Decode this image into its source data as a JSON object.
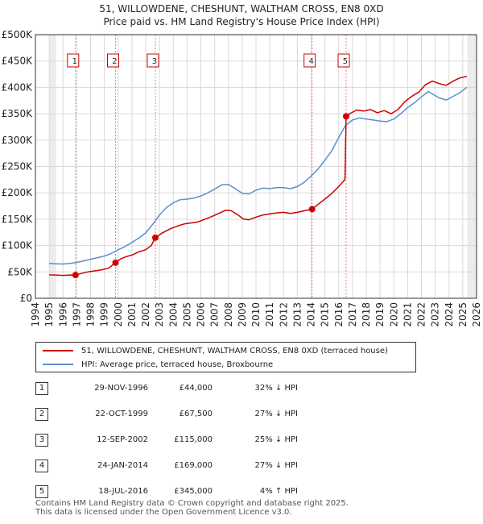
{
  "header": {
    "title": "51, WILLOWDENE, CHESHUNT, WALTHAM CROSS, EN8 0XD",
    "subtitle": "Price paid vs. HM Land Registry's House Price Index (HPI)"
  },
  "chart_data": {
    "type": "line",
    "title": "51, WILLOWDENE, CHESHUNT, WALTHAM CROSS, EN8 0XD",
    "subtitle": "Price paid vs. HM Land Registry's House Price Index (HPI)",
    "xlabel": "",
    "ylabel": "",
    "xlim": [
      1994,
      2026
    ],
    "ylim": [
      0,
      500000
    ],
    "x_ticks": [
      1994,
      1995,
      1996,
      1997,
      1998,
      1999,
      2000,
      2001,
      2002,
      2003,
      2004,
      2005,
      2006,
      2007,
      2008,
      2009,
      2010,
      2011,
      2012,
      2013,
      2014,
      2015,
      2016,
      2017,
      2018,
      2019,
      2020,
      2021,
      2022,
      2023,
      2024,
      2025,
      2026
    ],
    "y_ticks": [
      {
        "value": 0,
        "label": "£0"
      },
      {
        "value": 50000,
        "label": "£50K"
      },
      {
        "value": 100000,
        "label": "£100K"
      },
      {
        "value": 150000,
        "label": "£150K"
      },
      {
        "value": 200000,
        "label": "£200K"
      },
      {
        "value": 250000,
        "label": "£250K"
      },
      {
        "value": 300000,
        "label": "£300K"
      },
      {
        "value": 350000,
        "label": "£350K"
      },
      {
        "value": 400000,
        "label": "£400K"
      },
      {
        "value": 450000,
        "label": "£450K"
      },
      {
        "value": 500000,
        "label": "£500K"
      }
    ],
    "grid": true,
    "shaded_periods": [
      [
        1995.0,
        1995.5
      ],
      [
        2025.33,
        2026.0
      ]
    ],
    "series": [
      {
        "name": "51, WILLOWDENE, CHESHUNT, WALTHAM CROSS, EN8 0XD (terraced house)",
        "color": "#cc0000",
        "points": [
          [
            1995.0,
            44500
          ],
          [
            1995.5,
            44000
          ],
          [
            1996.0,
            43500
          ],
          [
            1996.5,
            44200
          ],
          [
            1996.91,
            44000
          ],
          [
            1997.3,
            47000
          ],
          [
            1997.8,
            50000
          ],
          [
            1998.3,
            52000
          ],
          [
            1998.8,
            54000
          ],
          [
            1999.3,
            57000
          ],
          [
            1999.81,
            67500
          ],
          [
            2000.2,
            75000
          ],
          [
            2000.6,
            79000
          ],
          [
            2001.0,
            82000
          ],
          [
            2001.5,
            88000
          ],
          [
            2002.0,
            92000
          ],
          [
            2002.4,
            100000
          ],
          [
            2002.7,
            115000
          ],
          [
            2003.2,
            124000
          ],
          [
            2003.8,
            132000
          ],
          [
            2004.3,
            137000
          ],
          [
            2004.8,
            141000
          ],
          [
            2005.3,
            143000
          ],
          [
            2005.8,
            145000
          ],
          [
            2006.3,
            150000
          ],
          [
            2006.8,
            155000
          ],
          [
            2007.3,
            161000
          ],
          [
            2007.8,
            167000
          ],
          [
            2008.2,
            166000
          ],
          [
            2008.7,
            158000
          ],
          [
            2009.1,
            150000
          ],
          [
            2009.5,
            149000
          ],
          [
            2010.0,
            154000
          ],
          [
            2010.5,
            158000
          ],
          [
            2011.0,
            160000
          ],
          [
            2011.5,
            162000
          ],
          [
            2012.0,
            163000
          ],
          [
            2012.5,
            161000
          ],
          [
            2013.0,
            163000
          ],
          [
            2013.5,
            166000
          ],
          [
            2014.07,
            169000
          ],
          [
            2014.5,
            178000
          ],
          [
            2015.0,
            188000
          ],
          [
            2015.5,
            199000
          ],
          [
            2016.0,
            212000
          ],
          [
            2016.45,
            225000
          ],
          [
            2016.54,
            345000
          ],
          [
            2016.8,
            350000
          ],
          [
            2017.3,
            357000
          ],
          [
            2017.8,
            355000
          ],
          [
            2018.3,
            358000
          ],
          [
            2018.8,
            352000
          ],
          [
            2019.3,
            356000
          ],
          [
            2019.8,
            350000
          ],
          [
            2020.3,
            358000
          ],
          [
            2020.8,
            373000
          ],
          [
            2021.3,
            383000
          ],
          [
            2021.8,
            391000
          ],
          [
            2022.3,
            405000
          ],
          [
            2022.8,
            412000
          ],
          [
            2023.3,
            407000
          ],
          [
            2023.8,
            404000
          ],
          [
            2024.3,
            412000
          ],
          [
            2024.8,
            418000
          ],
          [
            2025.3,
            421000
          ]
        ]
      },
      {
        "name": "HPI: Average price, terraced house, Broxbourne",
        "color": "#5b8fd0",
        "points": [
          [
            1995.0,
            66000
          ],
          [
            1995.5,
            65500
          ],
          [
            1996.0,
            65000
          ],
          [
            1996.5,
            66000
          ],
          [
            1997.0,
            68000
          ],
          [
            1997.5,
            71000
          ],
          [
            1998.0,
            74000
          ],
          [
            1998.5,
            77000
          ],
          [
            1999.0,
            80000
          ],
          [
            1999.5,
            85000
          ],
          [
            2000.0,
            92000
          ],
          [
            2000.5,
            98000
          ],
          [
            2001.0,
            106000
          ],
          [
            2001.5,
            114000
          ],
          [
            2002.0,
            124000
          ],
          [
            2002.5,
            140000
          ],
          [
            2003.0,
            158000
          ],
          [
            2003.5,
            172000
          ],
          [
            2004.0,
            181000
          ],
          [
            2004.5,
            187000
          ],
          [
            2005.0,
            188000
          ],
          [
            2005.5,
            190000
          ],
          [
            2006.0,
            194000
          ],
          [
            2006.5,
            200000
          ],
          [
            2007.0,
            207000
          ],
          [
            2007.5,
            215000
          ],
          [
            2008.0,
            216000
          ],
          [
            2008.5,
            208000
          ],
          [
            2009.0,
            199000
          ],
          [
            2009.5,
            198000
          ],
          [
            2010.0,
            205000
          ],
          [
            2010.5,
            209000
          ],
          [
            2011.0,
            208000
          ],
          [
            2011.5,
            210000
          ],
          [
            2012.0,
            210000
          ],
          [
            2012.5,
            208000
          ],
          [
            2013.0,
            212000
          ],
          [
            2013.5,
            220000
          ],
          [
            2014.0,
            232000
          ],
          [
            2014.5,
            245000
          ],
          [
            2015.0,
            262000
          ],
          [
            2015.5,
            280000
          ],
          [
            2016.0,
            305000
          ],
          [
            2016.5,
            328000
          ],
          [
            2017.0,
            338000
          ],
          [
            2017.5,
            342000
          ],
          [
            2018.0,
            340000
          ],
          [
            2018.5,
            338000
          ],
          [
            2019.0,
            336000
          ],
          [
            2019.5,
            335000
          ],
          [
            2020.0,
            340000
          ],
          [
            2020.5,
            350000
          ],
          [
            2021.0,
            362000
          ],
          [
            2021.5,
            371000
          ],
          [
            2022.0,
            382000
          ],
          [
            2022.5,
            392000
          ],
          [
            2022.9,
            386000
          ],
          [
            2023.3,
            380000
          ],
          [
            2023.8,
            376000
          ],
          [
            2024.3,
            383000
          ],
          [
            2024.8,
            390000
          ],
          [
            2025.3,
            400000
          ]
        ]
      }
    ],
    "sales": [
      {
        "id": "1",
        "year": 1996.91,
        "price": 44000
      },
      {
        "id": "2",
        "year": 1999.81,
        "price": 67500
      },
      {
        "id": "3",
        "year": 2002.7,
        "price": 115000
      },
      {
        "id": "4",
        "year": 2014.07,
        "price": 169000
      },
      {
        "id": "5",
        "year": 2016.54,
        "price": 345000
      }
    ]
  },
  "legend": {
    "property": "51, WILLOWDENE, CHESHUNT, WALTHAM CROSS, EN8 0XD (terraced house)",
    "hpi": "HPI: Average price, terraced house, Broxbourne",
    "property_color": "#cc0000",
    "hpi_color": "#5b8fd0"
  },
  "sales_table": [
    {
      "num": "1",
      "date": "29-NOV-1996",
      "price": "£44,000",
      "hpi": "32% ↓ HPI"
    },
    {
      "num": "2",
      "date": "22-OCT-1999",
      "price": "£67,500",
      "hpi": "27% ↓ HPI"
    },
    {
      "num": "3",
      "date": "12-SEP-2002",
      "price": "£115,000",
      "hpi": "25% ↓ HPI"
    },
    {
      "num": "4",
      "date": "24-JAN-2014",
      "price": "£169,000",
      "hpi": "27% ↓ HPI"
    },
    {
      "num": "5",
      "date": "18-JUL-2016",
      "price": "£345,000",
      "hpi": "4% ↑ HPI"
    }
  ],
  "footer": {
    "line1": "Contains HM Land Registry data © Crown copyright and database right 2025.",
    "line2": "This data is licensed under the Open Government Licence v3.0."
  }
}
